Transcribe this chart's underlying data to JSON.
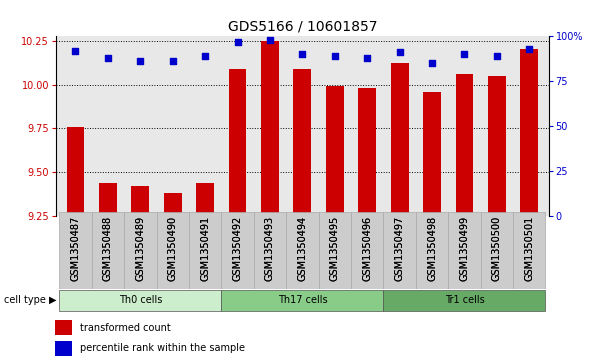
{
  "title": "GDS5166 / 10601857",
  "samples": [
    "GSM1350487",
    "GSM1350488",
    "GSM1350489",
    "GSM1350490",
    "GSM1350491",
    "GSM1350492",
    "GSM1350493",
    "GSM1350494",
    "GSM1350495",
    "GSM1350496",
    "GSM1350497",
    "GSM1350498",
    "GSM1350499",
    "GSM1350500",
    "GSM1350501"
  ],
  "red_values": [
    9.76,
    9.44,
    9.42,
    9.38,
    9.44,
    10.09,
    10.25,
    10.09,
    9.99,
    9.98,
    10.12,
    9.96,
    10.06,
    10.05,
    10.2
  ],
  "blue_values": [
    92,
    88,
    86,
    86,
    89,
    97,
    98,
    90,
    89,
    88,
    91,
    85,
    90,
    89,
    93
  ],
  "groups": [
    {
      "label": "Th0 cells",
      "start": 0,
      "end": 4
    },
    {
      "label": "Th17 cells",
      "start": 5,
      "end": 9
    },
    {
      "label": "Tr1 cells",
      "start": 10,
      "end": 14
    }
  ],
  "group_colors": [
    "#cceecc",
    "#88cc88",
    "#66aa66"
  ],
  "ylim_left": [
    9.25,
    10.275
  ],
  "ylim_right": [
    0,
    100
  ],
  "yticks_left": [
    9.25,
    9.5,
    9.75,
    10.0,
    10.25
  ],
  "yticks_right": [
    0,
    25,
    50,
    75,
    100
  ],
  "ytick_labels_right": [
    "0",
    "25",
    "50",
    "75",
    "100%"
  ],
  "red_color": "#cc0000",
  "blue_color": "#0000cc",
  "bar_width": 0.55,
  "plot_bg_color": "#e8e8e8",
  "legend_labels": [
    "transformed count",
    "percentile rank within the sample"
  ],
  "cell_type_label": "cell type",
  "title_fontsize": 10,
  "tick_fontsize": 7,
  "label_fontsize": 8
}
